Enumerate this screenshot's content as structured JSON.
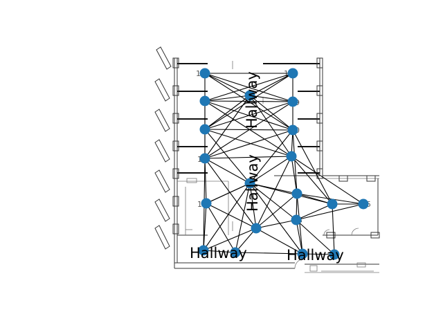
{
  "diagram": {
    "hallway_labels": [
      "Hallway",
      "Hallway",
      "Hallway",
      "Hallway"
    ],
    "room_labels": [
      "17",
      "18",
      "19",
      "10",
      "1",
      "5",
      "3",
      "16"
    ],
    "node_color": "#1f77b4",
    "edge_color": "#000000"
  }
}
